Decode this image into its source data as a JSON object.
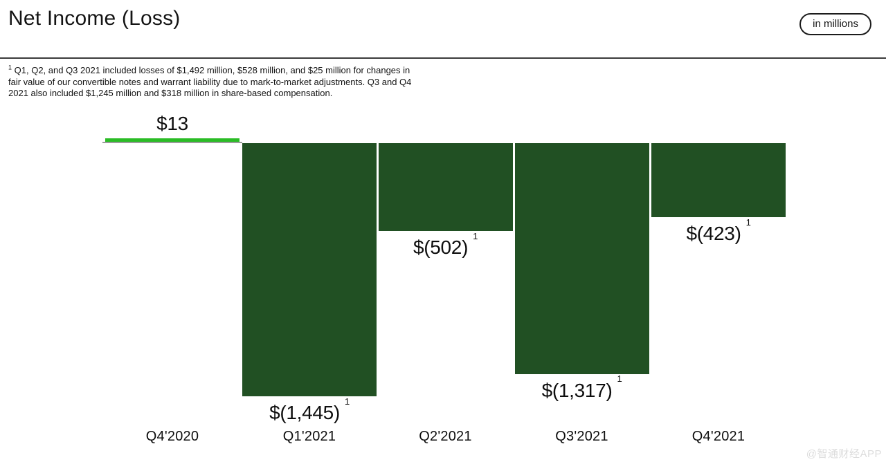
{
  "header": {
    "title": "Net Income (Loss)",
    "unit_badge": "in millions"
  },
  "footnote": {
    "sup": "1",
    "text": "Q1, Q2, and Q3 2021 included losses of $1,492 million, $528 million, and $25 million for changes in fair value of our convertible notes and warrant liability due to mark-to-market adjustments. Q3 and Q4 2021 also included $1,245 million and $318 million in share-based compensation."
  },
  "watermark": "@智通财经APP",
  "colors": {
    "positive_bar": "#2abc25",
    "negative_bar": "#215023",
    "axis_line": "#9a9a9a",
    "text": "#111111"
  },
  "chart_data": {
    "type": "bar",
    "title": "Net Income (Loss)",
    "unit": "in millions",
    "categories": [
      "Q4'2020",
      "Q1'2021",
      "Q2'2021",
      "Q3'2021",
      "Q4'2021"
    ],
    "values": [
      13,
      -1445,
      -502,
      -1317,
      -423
    ],
    "labels": [
      "$13",
      "$(1,445)",
      "$(502)",
      "$(1,317)",
      "$(423)"
    ],
    "footnoted": [
      false,
      true,
      true,
      true,
      true
    ],
    "sup_mark": "1",
    "ylim": [
      -1500,
      100
    ],
    "grid": false,
    "legend": false,
    "value_labels_shown": true
  }
}
